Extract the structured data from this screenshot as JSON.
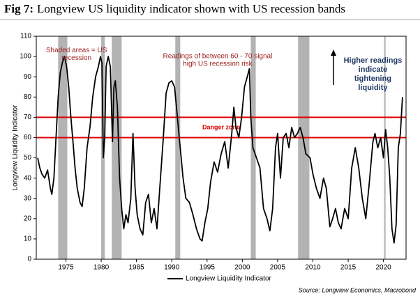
{
  "chart_data": {
    "type": "line",
    "fig_label": "Fig 7:",
    "title": "Longview US liquidity indicator shown with US recession bands",
    "y_label": "Longview Liquidity Indicator",
    "source": "Source: Longview Economics, Macrobond",
    "xlim": [
      1970.8,
      2023.2
    ],
    "ylim": [
      0,
      110
    ],
    "xticks": [
      1975,
      1980,
      1985,
      1990,
      1995,
      2000,
      2005,
      2010,
      2015,
      2020
    ],
    "yticks": [
      0,
      10,
      20,
      30,
      40,
      50,
      60,
      70,
      80,
      90,
      100,
      110
    ],
    "recessions": [
      [
        1973.9,
        1975.2
      ],
      [
        1980.0,
        1980.5
      ],
      [
        1981.5,
        1982.9
      ],
      [
        1990.5,
        1991.2
      ],
      [
        2001.2,
        2001.9
      ],
      [
        2007.9,
        2009.5
      ],
      [
        2020.1,
        2020.3
      ]
    ],
    "recession_color": "#b3b3b3",
    "danger_lines": [
      60,
      70
    ],
    "danger_color": "#e00000",
    "danger_label": "Danger zone",
    "annotations": [
      {
        "lines": [
          "Shaded areas = US",
          "recession"
        ],
        "x": 1976.5,
        "y": 103
      },
      {
        "lines": [
          "Readings of between 60 - 70 signal",
          "high US recession risk"
        ],
        "x": 1996.5,
        "y": 100
      },
      {
        "lines": [
          "Higher readings",
          "indicate",
          "tightening",
          "liquidity"
        ],
        "x": 2018.5,
        "y": 98
      }
    ],
    "x": [
      1971.0,
      1971.3,
      1971.6,
      1972.0,
      1972.4,
      1972.8,
      1973.0,
      1973.3,
      1973.6,
      1973.9,
      1974.2,
      1974.5,
      1974.8,
      1975.1,
      1975.4,
      1975.7,
      1976.0,
      1976.3,
      1976.6,
      1977.0,
      1977.3,
      1977.6,
      1978.0,
      1978.4,
      1978.8,
      1979.2,
      1979.6,
      1979.9,
      1980.1,
      1980.3,
      1980.5,
      1980.7,
      1981.0,
      1981.3,
      1981.6,
      1981.8,
      1982.0,
      1982.3,
      1982.6,
      1982.9,
      1983.2,
      1983.5,
      1983.8,
      1984.2,
      1984.5,
      1984.8,
      1985.1,
      1985.5,
      1985.9,
      1986.3,
      1986.7,
      1987.1,
      1987.5,
      1987.9,
      1988.3,
      1988.8,
      1989.2,
      1989.6,
      1990.0,
      1990.4,
      1990.8,
      1991.2,
      1991.6,
      1992.0,
      1992.5,
      1993.0,
      1993.5,
      1994.0,
      1994.3,
      1994.7,
      1995.1,
      1995.5,
      1996.0,
      1996.5,
      1997.0,
      1997.5,
      1998.0,
      1998.5,
      1998.8,
      1999.1,
      1999.5,
      1999.9,
      2000.3,
      2000.7,
      2001.0,
      2001.2,
      2001.5,
      2002.0,
      2002.5,
      2003.0,
      2003.5,
      2003.9,
      2004.3,
      2004.7,
      2005.0,
      2005.4,
      2005.8,
      2006.2,
      2006.6,
      2007.0,
      2007.4,
      2007.8,
      2008.2,
      2008.6,
      2009.0,
      2009.6,
      2010.0,
      2010.5,
      2011.0,
      2011.5,
      2011.9,
      2012.4,
      2012.8,
      2013.2,
      2013.6,
      2014.0,
      2014.5,
      2015.0,
      2015.5,
      2016.0,
      2016.5,
      2017.0,
      2017.5,
      2018.0,
      2018.5,
      2018.8,
      2019.2,
      2019.6,
      2020.0,
      2020.3,
      2020.6,
      2020.9,
      2021.2,
      2021.5,
      2021.8,
      2022.1,
      2022.4,
      2022.7
    ],
    "series": [
      {
        "name": "Longview Liquidity Indicator",
        "color": "#000000",
        "values": [
          50,
          45,
          42,
          40,
          44,
          35,
          32,
          40,
          60,
          80,
          92,
          97,
          100,
          95,
          85,
          70,
          58,
          45,
          35,
          28,
          26,
          35,
          55,
          65,
          80,
          90,
          95,
          100,
          97,
          50,
          60,
          95,
          100,
          95,
          58,
          85,
          88,
          75,
          40,
          25,
          15,
          22,
          18,
          30,
          62,
          35,
          22,
          15,
          12,
          28,
          32,
          18,
          25,
          15,
          35,
          60,
          82,
          87,
          88,
          85,
          70,
          55,
          40,
          30,
          28,
          22,
          15,
          10,
          9,
          18,
          25,
          38,
          48,
          43,
          52,
          58,
          45,
          62,
          75,
          65,
          60,
          70,
          85,
          90,
          94,
          70,
          55,
          50,
          45,
          25,
          20,
          14,
          25,
          55,
          62,
          40,
          60,
          62,
          55,
          65,
          60,
          62,
          65,
          60,
          52,
          50,
          42,
          35,
          30,
          40,
          35,
          16,
          20,
          25,
          18,
          15,
          25,
          20,
          45,
          55,
          45,
          30,
          20,
          38,
          58,
          62,
          55,
          60,
          50,
          64,
          55,
          40,
          15,
          8,
          17,
          55,
          62,
          80
        ]
      }
    ]
  }
}
